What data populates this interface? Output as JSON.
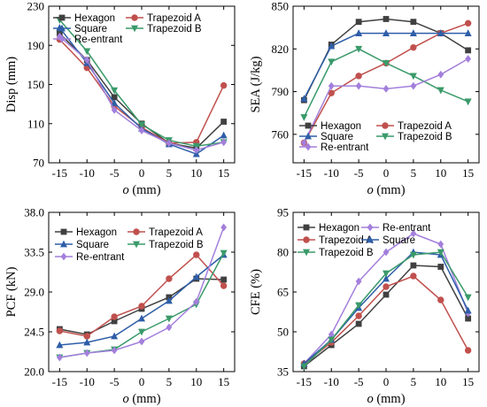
{
  "chart_data": [
    {
      "id": "disp",
      "type": "line",
      "xlabel": "o (mm)",
      "ylabel": "Disp (mm)",
      "x": [
        -15,
        -10,
        -5,
        0,
        5,
        10,
        15
      ],
      "xticks": [
        -15,
        -10,
        -5,
        0,
        5,
        10,
        15
      ],
      "ylim": [
        70,
        230
      ],
      "yticks": [
        70,
        110,
        150,
        190,
        230
      ],
      "legend_position": "top-right",
      "legend_columns": 2,
      "series": [
        {
          "name": "Hexagon",
          "color": "#404040",
          "marker": "square",
          "values": [
            202,
            175,
            137,
            110,
            90,
            85,
            112
          ]
        },
        {
          "name": "Trapezoid A",
          "color": "#c0504d",
          "marker": "circle",
          "values": [
            196,
            167,
            128,
            106,
            90,
            91,
            149
          ]
        },
        {
          "name": "Square",
          "color": "#2e5ea8",
          "marker": "triangle-up",
          "values": [
            208,
            172,
            131,
            105,
            89,
            79,
            98
          ]
        },
        {
          "name": "Trapezoid B",
          "color": "#3a9a6a",
          "marker": "triangle-down",
          "values": [
            216,
            184,
            144,
            109,
            93,
            87,
            91
          ]
        },
        {
          "name": "Re-entrant",
          "color": "#a37fdc",
          "marker": "diamond",
          "values": [
            199,
            175,
            124,
            103,
            90,
            83,
            91
          ]
        }
      ]
    },
    {
      "id": "sea",
      "type": "line",
      "xlabel": "o (mm)",
      "ylabel": "SEA (J/kg)",
      "x": [
        -15,
        -10,
        -5,
        0,
        5,
        10,
        15
      ],
      "xticks": [
        -15,
        -10,
        -5,
        0,
        5,
        10,
        15
      ],
      "ylim": [
        740,
        850
      ],
      "yticks": [
        760,
        790,
        820,
        850
      ],
      "legend_position": "bottom-right",
      "legend_columns": 2,
      "series": [
        {
          "name": "Hexagon",
          "color": "#404040",
          "marker": "square",
          "values": [
            784,
            823,
            839,
            841,
            839,
            831,
            819
          ]
        },
        {
          "name": "Trapezoid A",
          "color": "#c0504d",
          "marker": "circle",
          "values": [
            754,
            789,
            801,
            810,
            821,
            831,
            838
          ]
        },
        {
          "name": "Square",
          "color": "#2e5ea8",
          "marker": "triangle-up",
          "values": [
            785,
            822,
            831,
            831,
            831,
            831,
            831
          ]
        },
        {
          "name": "Trapezoid B",
          "color": "#3a9a6a",
          "marker": "triangle-down",
          "values": [
            772,
            811,
            820,
            810,
            801,
            791,
            783
          ]
        },
        {
          "name": "Re-entrant",
          "color": "#a37fdc",
          "marker": "diamond",
          "values": [
            754,
            794,
            794,
            792,
            794,
            802,
            813
          ]
        }
      ]
    },
    {
      "id": "pcf",
      "type": "line",
      "xlabel": "o (mm)",
      "ylabel": "PCF (kN)",
      "x": [
        -15,
        -10,
        -5,
        0,
        5,
        10,
        15
      ],
      "xticks": [
        -15,
        -10,
        -5,
        0,
        5,
        10,
        15
      ],
      "ylim": [
        20.0,
        38.0
      ],
      "yticks": [
        "20.0",
        "24.5",
        "29.0",
        "33.5",
        "38.0"
      ],
      "legend_position": "top",
      "legend_columns": 2,
      "series": [
        {
          "name": "Hexagon",
          "color": "#404040",
          "marker": "square",
          "values": [
            24.8,
            24.2,
            25.7,
            27.1,
            28.4,
            30.5,
            30.4
          ]
        },
        {
          "name": "Trapezoid A",
          "color": "#c0504d",
          "marker": "circle",
          "values": [
            24.6,
            24.0,
            26.2,
            27.4,
            30.5,
            33.2,
            29.7
          ]
        },
        {
          "name": "Square",
          "color": "#2e5ea8",
          "marker": "triangle-up",
          "values": [
            23.0,
            23.3,
            24.0,
            26.0,
            28.0,
            30.7,
            33.2
          ]
        },
        {
          "name": "Trapezoid B",
          "color": "#3a9a6a",
          "marker": "triangle-down",
          "values": [
            21.6,
            22.1,
            22.5,
            24.5,
            26.0,
            27.6,
            33.4
          ]
        },
        {
          "name": "Re-entrant",
          "color": "#a37fdc",
          "marker": "diamond",
          "values": [
            21.6,
            22.1,
            22.4,
            23.4,
            25.0,
            27.9,
            36.3
          ]
        }
      ]
    },
    {
      "id": "cfe",
      "type": "line",
      "xlabel": "o (mm)",
      "ylabel": "CFE (%)",
      "x": [
        -15,
        -10,
        -5,
        0,
        5,
        10,
        15
      ],
      "xticks": [
        -15,
        -10,
        -5,
        0,
        5,
        10,
        15
      ],
      "ylim": [
        35,
        95
      ],
      "yticks": [
        35,
        50,
        65,
        80,
        95
      ],
      "legend_position": "top-left",
      "legend_columns": 2,
      "series": [
        {
          "name": "Hexagon",
          "color": "#404040",
          "marker": "square",
          "values": [
            37,
            45,
            53,
            64,
            75,
            74.5,
            55
          ]
        },
        {
          "name": "Re-entrant",
          "color": "#a37fdc",
          "marker": "diamond",
          "values": [
            38,
            49,
            69,
            80,
            87,
            83,
            57
          ]
        },
        {
          "name": "Trapezoid A",
          "color": "#c0504d",
          "marker": "circle",
          "values": [
            38,
            46,
            56,
            67,
            71,
            62,
            43
          ]
        },
        {
          "name": "Square",
          "color": "#2e5ea8",
          "marker": "triangle-up",
          "values": [
            38,
            47,
            59,
            70,
            80,
            79,
            58
          ]
        },
        {
          "name": "Trapezoid B",
          "color": "#3a9a6a",
          "marker": "triangle-down",
          "values": [
            37,
            47,
            60,
            72,
            79,
            80,
            63
          ]
        }
      ]
    }
  ]
}
